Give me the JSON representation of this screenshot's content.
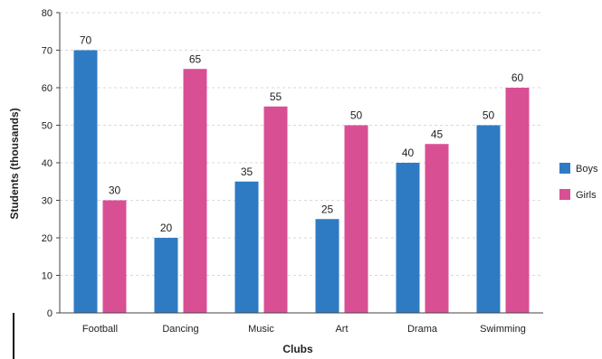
{
  "chart_data": {
    "type": "bar",
    "categories": [
      "Football",
      "Dancing",
      "Music",
      "Art",
      "Drama",
      "Swimming"
    ],
    "series": [
      {
        "name": "Boys",
        "values": [
          70,
          20,
          35,
          25,
          40,
          50
        ],
        "color": "#2e7bc4"
      },
      {
        "name": "Girls",
        "values": [
          30,
          65,
          55,
          50,
          45,
          60
        ],
        "color": "#d94f93"
      }
    ],
    "xlabel": "Clubs",
    "ylabel": "Students (thousands)",
    "ylim": [
      0,
      80
    ],
    "yticks": [
      0,
      10,
      20,
      30,
      40,
      50,
      60,
      70,
      80
    ],
    "grid": true,
    "legend_position": "right"
  }
}
